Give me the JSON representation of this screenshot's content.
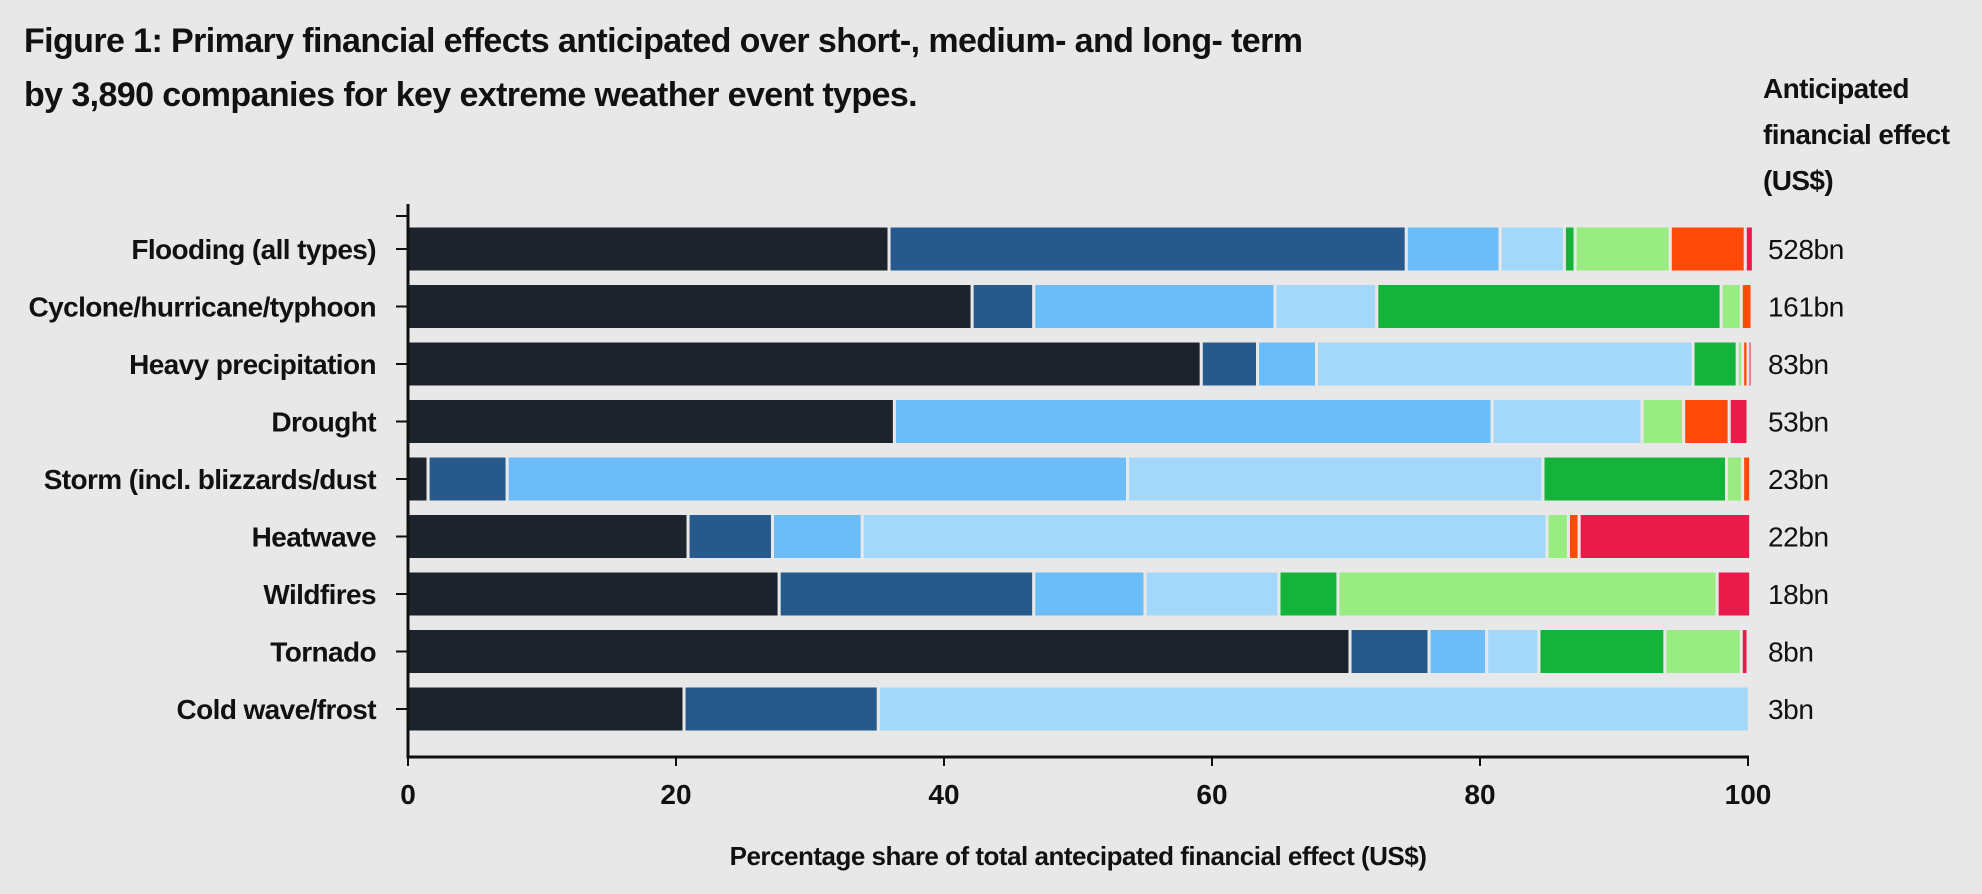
{
  "title_lines": [
    "Figure 1: Primary financial effects anticipated over short-, medium- and long- term",
    "by 3,890 companies for key extreme weather event types."
  ],
  "value_header_lines": [
    "Anticipated",
    "financial effect",
    "(US$)"
  ],
  "colors": [
    "#1c232d",
    "#265a8c",
    "#6cbcf7",
    "#a4d8fb",
    "#14b33a",
    "#98ec82",
    "#ff4a0a",
    "#ea1a4b"
  ],
  "chart_data": {
    "type": "bar",
    "orientation": "horizontal",
    "stacked": true,
    "title": "Figure 1: Primary financial effects anticipated over short-, medium- and long- term by 3,890 companies for key extreme weather event types.",
    "xlabel": "Percentage share of total antecipated financial effect (US$)",
    "ylabel": "",
    "xlim": [
      0,
      100
    ],
    "xticks": [
      0,
      20,
      40,
      60,
      80,
      100
    ],
    "legend": "none",
    "grid": false,
    "categories": [
      "Flooding (all types)",
      "Cyclone/hurricane/typhoon",
      "Heavy precipitation",
      "Drought",
      "Storm (incl. blizzards/dust",
      "Heatwave",
      "Wildfires",
      "Tornado",
      "Cold wave/frost"
    ],
    "totals": [
      "528bn",
      "161bn",
      "83bn",
      "53bn",
      "23bn",
      "22bn",
      "18bn",
      "8bn",
      "3bn"
    ],
    "segments": [
      [
        35.9,
        38.6,
        7.0,
        4.8,
        0.8,
        7.1,
        5.6,
        0.6
      ],
      [
        42.1,
        4.6,
        18.0,
        7.6,
        25.7,
        1.5,
        0.8,
        0.0
      ],
      [
        59.2,
        4.2,
        4.4,
        28.1,
        3.3,
        0.4,
        0.4,
        0.3
      ],
      [
        36.3,
        0.0,
        44.6,
        11.2,
        0.0,
        3.1,
        3.4,
        1.4
      ],
      [
        1.5,
        5.9,
        46.3,
        31.0,
        13.7,
        1.2,
        0.6,
        0.0
      ],
      [
        20.9,
        6.3,
        6.7,
        51.1,
        0.0,
        1.6,
        0.8,
        12.8
      ],
      [
        27.7,
        19.0,
        8.3,
        10.0,
        4.4,
        28.3,
        0.0,
        2.5
      ],
      [
        70.3,
        5.9,
        4.3,
        3.9,
        9.4,
        5.7,
        0.0,
        0.5
      ],
      [
        20.6,
        14.5,
        0.0,
        65.0,
        0.0,
        0.0,
        0.0,
        0.0
      ]
    ]
  }
}
